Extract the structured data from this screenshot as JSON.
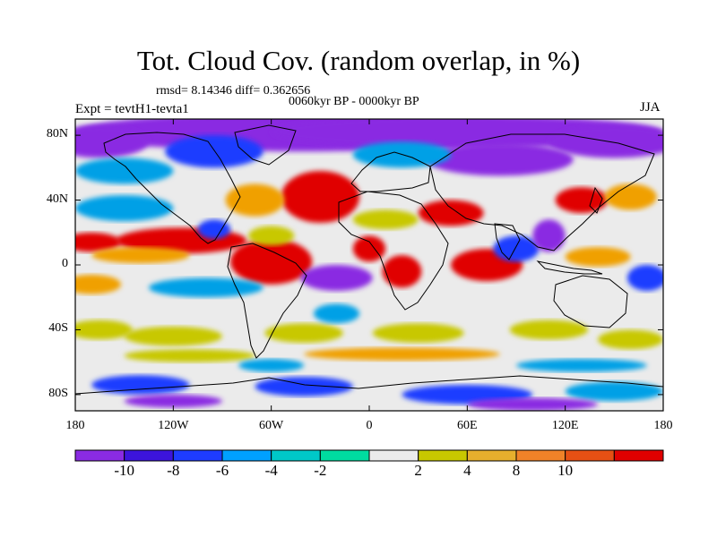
{
  "title": "Tot. Cloud Cov. (random overlap, in %)",
  "stats": "rmsd= 8.14346 diff= 0.362656",
  "period": "0060kyr BP - 0000kyr BP",
  "experiment": "Expt = tevtH1-tevta1",
  "season": "JJA",
  "map": {
    "lat_ticks": [
      "80N",
      "40N",
      "0",
      "40S",
      "80S"
    ],
    "lat_values": [
      80,
      40,
      0,
      -40,
      -80
    ],
    "lon_ticks": [
      "180",
      "120W",
      "60W",
      "0",
      "60E",
      "120E",
      "180"
    ],
    "lon_values": [
      -180,
      -120,
      -60,
      0,
      60,
      120,
      180
    ],
    "lat_range": [
      -90,
      90
    ],
    "lon_range": [
      -180,
      180
    ],
    "fill_colors": {
      "strong_decrease": "#8a2be2",
      "decrease": "#1e3cff",
      "moderate_decrease": "#00a0e6",
      "small_decrease": "#00d2c8",
      "neutral": "#ebebeb",
      "small_increase": "#c8c800",
      "increase": "#f0a000",
      "strong_increase": "#e00000"
    }
  },
  "colorbar": {
    "labels": [
      "-10",
      "-8",
      "-6",
      "-4",
      "-2",
      "2",
      "4",
      "8",
      "10"
    ],
    "colors": [
      "#8a2be2",
      "#3c14dc",
      "#1e3cff",
      "#00a0ff",
      "#00c8c8",
      "#00dca0",
      "#ebebeb",
      "#c8c800",
      "#e6af2d",
      "#f08228",
      "#e65014",
      "#e00000"
    ]
  }
}
